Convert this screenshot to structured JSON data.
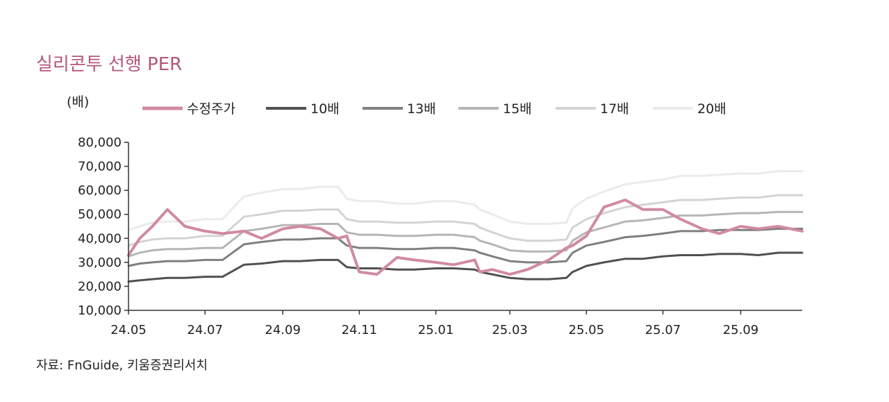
{
  "title": "실리콘투 선행 PER",
  "unit_label": "(배)",
  "source": "자료: FnGuide, 키움증권리서치",
  "chart_data": {
    "type": "line",
    "ylim": [
      10000,
      80000
    ],
    "yticks": [
      "80,000",
      "70,000",
      "60,000",
      "50,000",
      "40,000",
      "30,000",
      "20,000",
      "10,000"
    ],
    "ytick_values": [
      80000,
      70000,
      60000,
      50000,
      40000,
      30000,
      20000,
      10000
    ],
    "xlim": [
      "2024-05-01",
      "2025-10-20"
    ],
    "xticks": [
      "24.05",
      "24.07",
      "24.09",
      "24.11",
      "25.01",
      "25.03",
      "25.05",
      "25.07",
      "25.09"
    ],
    "xtick_dates": [
      "2024-05-01",
      "2024-07-01",
      "2024-09-01",
      "2024-11-01",
      "2025-01-01",
      "2025-03-01",
      "2025-05-01",
      "2025-07-01",
      "2025-09-01"
    ],
    "legend_position": "top",
    "x": [
      "2024-05-01",
      "2024-05-10",
      "2024-05-20",
      "2024-06-01",
      "2024-06-15",
      "2024-07-01",
      "2024-07-15",
      "2024-08-01",
      "2024-08-15",
      "2024-09-01",
      "2024-09-15",
      "2024-10-01",
      "2024-10-15",
      "2024-10-22",
      "2024-11-01",
      "2024-11-15",
      "2024-12-01",
      "2024-12-15",
      "2025-01-01",
      "2025-01-15",
      "2025-02-01",
      "2025-02-05",
      "2025-02-15",
      "2025-03-01",
      "2025-03-15",
      "2025-04-01",
      "2025-04-15",
      "2025-04-20",
      "2025-05-01",
      "2025-05-15",
      "2025-06-01",
      "2025-06-15",
      "2025-07-01",
      "2025-07-15",
      "2025-08-01",
      "2025-08-15",
      "2025-09-01",
      "2025-09-15",
      "2025-10-01",
      "2025-10-20"
    ],
    "series": [
      {
        "name": "수정주가",
        "color": "#d08aa3",
        "width": 4,
        "values": [
          33000,
          40000,
          45000,
          52000,
          45000,
          43000,
          42000,
          43000,
          40000,
          44000,
          45000,
          44000,
          40000,
          41000,
          26000,
          25000,
          32000,
          31000,
          30000,
          29000,
          31000,
          26000,
          27000,
          25000,
          27000,
          31000,
          36000,
          37000,
          41000,
          53000,
          56000,
          52000,
          52000,
          48000,
          44000,
          42000,
          45000,
          44000,
          45000,
          43000
        ]
      },
      {
        "name": "10배",
        "color": "#505050",
        "width": 3,
        "values": [
          22000,
          22500,
          23000,
          23500,
          23500,
          24000,
          24000,
          29000,
          29500,
          30500,
          30500,
          31000,
          31000,
          28000,
          27500,
          27500,
          27000,
          27000,
          27500,
          27500,
          27000,
          26000,
          25000,
          23500,
          23000,
          23000,
          23500,
          26000,
          28500,
          30000,
          31500,
          31500,
          32500,
          33000,
          33000,
          33500,
          33500,
          33000,
          34000,
          34000
        ]
      },
      {
        "name": "13배",
        "color": "#7f7f7f",
        "width": 3,
        "values": [
          28500,
          29500,
          30000,
          30500,
          30500,
          31000,
          31000,
          37500,
          38500,
          39500,
          39500,
          40000,
          40000,
          37000,
          36000,
          36000,
          35500,
          35500,
          36000,
          36000,
          35000,
          34000,
          32500,
          30500,
          30000,
          30000,
          30500,
          34000,
          37000,
          38500,
          40500,
          41000,
          42000,
          43000,
          43000,
          43500,
          43500,
          43500,
          44000,
          44000
        ]
      },
      {
        "name": "15배",
        "color": "#b5b5b5",
        "width": 3,
        "values": [
          32500,
          34000,
          35000,
          35500,
          35500,
          36000,
          36000,
          43000,
          44000,
          45500,
          45500,
          46000,
          46000,
          42500,
          41500,
          41500,
          41000,
          41000,
          41500,
          41500,
          40500,
          39000,
          37500,
          35000,
          34500,
          34500,
          35000,
          39000,
          42500,
          44500,
          47000,
          47500,
          48500,
          49500,
          49500,
          50000,
          50500,
          50500,
          51000,
          51000
        ]
      },
      {
        "name": "17배",
        "color": "#d3d3d3",
        "width": 3,
        "values": [
          37000,
          38500,
          39500,
          40000,
          40000,
          41000,
          41000,
          49000,
          50000,
          51500,
          51500,
          52000,
          52000,
          48000,
          47000,
          47000,
          46500,
          46500,
          47000,
          47000,
          46000,
          44500,
          42500,
          40000,
          39000,
          39000,
          39500,
          44500,
          48000,
          50500,
          53000,
          54000,
          55000,
          56000,
          56000,
          56500,
          57000,
          57000,
          58000,
          58000
        ]
      },
      {
        "name": "20배",
        "color": "#ebebeb",
        "width": 3,
        "values": [
          43500,
          45000,
          46500,
          47000,
          47000,
          48000,
          48000,
          57500,
          59000,
          60500,
          60500,
          61500,
          61500,
          56500,
          55500,
          55500,
          54500,
          54500,
          55500,
          55500,
          54000,
          52000,
          50000,
          47000,
          46000,
          46000,
          46500,
          52500,
          56500,
          59500,
          62500,
          63500,
          64500,
          66000,
          66000,
          66500,
          67000,
          67000,
          68000,
          68000
        ]
      }
    ]
  }
}
